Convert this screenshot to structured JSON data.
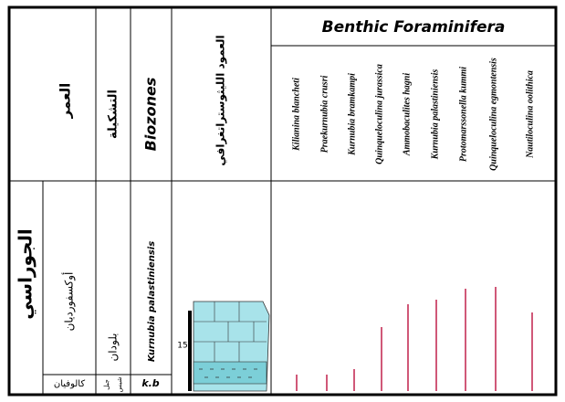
{
  "header": {
    "age": "العمر",
    "formation": "التشكيلة",
    "biozones": "Biozones",
    "lithology": "العمود الليثوستراتغرافي",
    "fauna": "Benthic Foraminifera"
  },
  "species": [
    "Kilianina blancheti",
    "Praekurnubia crusri",
    "Kurnubia bramkampi",
    "Quinqueloculina jurassica",
    "Ammobaculites hagni",
    "Kurnubia palastiniensis",
    "Protomarssonella kummi",
    "Quinqueloculina egmontensis",
    "Nautiloculina oolithica"
  ],
  "body": {
    "system": "الجوراسي",
    "stage": "أوكسفورديان",
    "lower_stage": "كالوفيان",
    "formation": "بلودان",
    "lower_formation": [
      "جبل",
      "شيس"
    ],
    "biozone": "Kurnubia palastiniensis",
    "lower_biozone": "k.b",
    "thickness": "15"
  }
}
